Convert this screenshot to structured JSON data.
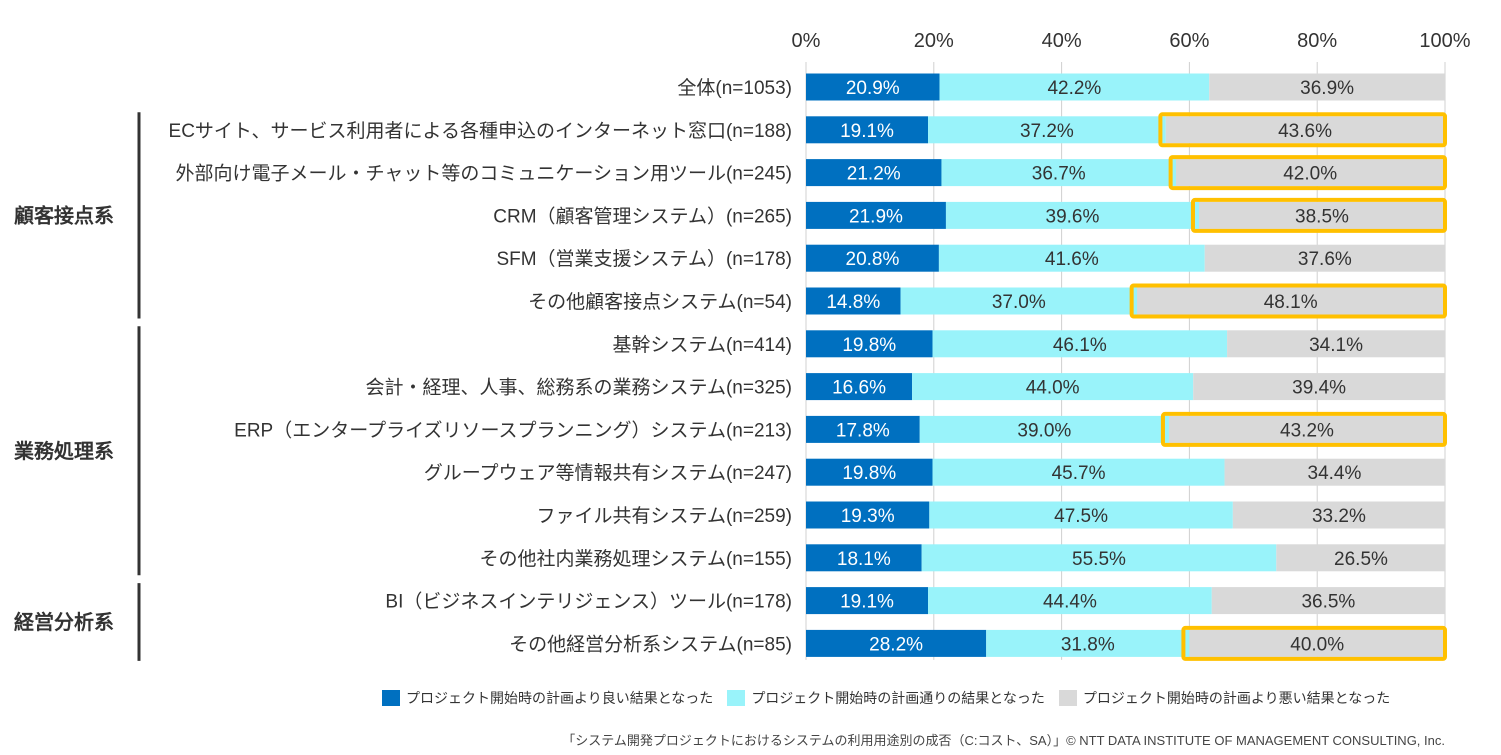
{
  "chart_data": {
    "type": "bar",
    "stacked": true,
    "orientation": "horizontal",
    "xlim": [
      0,
      100
    ],
    "x_ticks": [
      "0%",
      "20%",
      "40%",
      "60%",
      "80%",
      "100%"
    ],
    "categories": [
      "全体(n=1053)",
      "ECサイト、サービス利用者による各種申込のインターネット窓口(n=188)",
      "外部向け電子メール・チャット等のコミュニケーション用ツール(n=245)",
      "CRM（顧客管理システム）(n=265)",
      "SFM（営業支援システム）(n=178)",
      "その他顧客接点システム(n=54)",
      "基幹システム(n=414)",
      "会計・経理、人事、総務系の業務システム(n=325)",
      "ERP（エンタープライズリソースプランニング）システム(n=213)",
      "グループウェア等情報共有システム(n=247)",
      "ファイル共有システム(n=259)",
      "その他社内業務処理システム(n=155)",
      "BI（ビジネスインテリジェンス）ツール(n=178)",
      "その他経営分析系システム(n=85)"
    ],
    "series": [
      {
        "name": "プロジェクト開始時の計画より良い結果となった",
        "color": "#0070C0",
        "label_color": "#ffffff",
        "values": [
          20.9,
          19.1,
          21.2,
          21.9,
          20.8,
          14.8,
          19.8,
          16.6,
          17.8,
          19.8,
          19.3,
          18.1,
          19.1,
          28.2
        ]
      },
      {
        "name": "プロジェクト開始時の計画通りの結果となった",
        "color": "#99F3FA",
        "label_color": "#333333",
        "values": [
          42.2,
          37.2,
          36.7,
          39.6,
          41.6,
          37.0,
          46.1,
          44.0,
          39.0,
          45.7,
          47.5,
          55.5,
          44.4,
          31.8
        ]
      },
      {
        "name": "プロジェクト開始時の計画より悪い結果となった",
        "color": "#D9D9D9",
        "label_color": "#333333",
        "values": [
          36.9,
          43.6,
          42.0,
          38.5,
          37.6,
          48.1,
          34.1,
          39.4,
          43.2,
          34.4,
          33.2,
          26.5,
          36.5,
          40.0
        ]
      }
    ],
    "highlighted_rows": [
      1,
      2,
      3,
      5,
      8,
      13
    ],
    "highlight_color": "#FFC000",
    "groups": [
      {
        "label": "顧客接点系",
        "rows": [
          1,
          5
        ]
      },
      {
        "label": "業務処理系",
        "rows": [
          6,
          11
        ]
      },
      {
        "label": "経営分析系",
        "rows": [
          12,
          13
        ]
      }
    ],
    "legend_position": "bottom"
  },
  "footer": "「システム開発プロジェクトにおけるシステムの利用用途別の成否（C:コスト、SA）」© NTT DATA INSTITUTE OF MANAGEMENT CONSULTING, Inc."
}
